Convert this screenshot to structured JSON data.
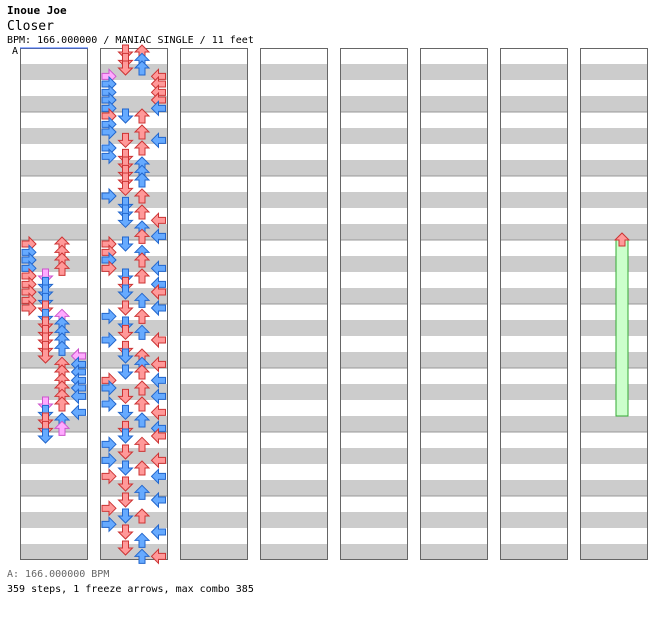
{
  "header": {
    "artist": "Inoue Joe",
    "title": "Closer",
    "info": "BPM: 166.000000 / MANIAC SINGLE / 11 feet",
    "bpm_marker": "A"
  },
  "footer": {
    "bpm_legend": "A: 166.000000 BPM",
    "stats": "359 steps, 1 freeze arrows, max combo 385"
  },
  "colors": {
    "stripe": "#cccccc",
    "background": "#ffffff",
    "border": "#666666",
    "red_arrow": "#ff9999",
    "blue_arrow": "#66aaff",
    "pink_arrow": "#ffaaff",
    "freeze_body": "#ccffcc",
    "bpm_line": "#3366ff"
  },
  "chart_data": {
    "type": "step-chart",
    "lanes": [
      "left",
      "down",
      "up",
      "right"
    ],
    "measures_per_column": 8,
    "columns": 8,
    "arrow_colors": {
      "4th": "red",
      "8th": "blue",
      "16th": "pink"
    },
    "notes": [
      {
        "m": 3,
        "b": 0.0,
        "l": 0,
        "c": "r"
      },
      {
        "m": 3,
        "b": 0.0,
        "l": 2,
        "c": "r"
      },
      {
        "m": 3,
        "b": 0.13,
        "l": 0,
        "c": "b"
      },
      {
        "m": 3,
        "b": 0.13,
        "l": 2,
        "c": "r"
      },
      {
        "m": 3,
        "b": 0.25,
        "l": 0,
        "c": "b"
      },
      {
        "m": 3,
        "b": 0.25,
        "l": 2,
        "c": "r"
      },
      {
        "m": 3,
        "b": 0.38,
        "l": 0,
        "c": "b"
      },
      {
        "m": 3,
        "b": 0.38,
        "l": 2,
        "c": "r"
      },
      {
        "m": 3,
        "b": 0.5,
        "l": 0,
        "c": "r"
      },
      {
        "m": 3,
        "b": 0.5,
        "l": 1,
        "c": "p"
      },
      {
        "m": 3,
        "b": 0.63,
        "l": 0,
        "c": "r"
      },
      {
        "m": 3,
        "b": 0.63,
        "l": 1,
        "c": "b"
      },
      {
        "m": 3,
        "b": 0.75,
        "l": 0,
        "c": "r"
      },
      {
        "m": 3,
        "b": 0.75,
        "l": 1,
        "c": "b"
      },
      {
        "m": 3,
        "b": 0.88,
        "l": 0,
        "c": "r"
      },
      {
        "m": 3,
        "b": 0.88,
        "l": 1,
        "c": "b"
      },
      {
        "m": 4,
        "b": 0.0,
        "l": 0,
        "c": "r"
      },
      {
        "m": 4,
        "b": 0.0,
        "l": 1,
        "c": "r"
      },
      {
        "m": 4,
        "b": 0.13,
        "l": 1,
        "c": "b"
      },
      {
        "m": 4,
        "b": 0.13,
        "l": 2,
        "c": "p"
      },
      {
        "m": 4,
        "b": 0.25,
        "l": 1,
        "c": "r"
      },
      {
        "m": 4,
        "b": 0.25,
        "l": 2,
        "c": "b"
      },
      {
        "m": 4,
        "b": 0.38,
        "l": 1,
        "c": "r"
      },
      {
        "m": 4,
        "b": 0.38,
        "l": 2,
        "c": "b"
      },
      {
        "m": 4,
        "b": 0.5,
        "l": 1,
        "c": "r"
      },
      {
        "m": 4,
        "b": 0.5,
        "l": 2,
        "c": "b"
      },
      {
        "m": 4,
        "b": 0.63,
        "l": 1,
        "c": "r"
      },
      {
        "m": 4,
        "b": 0.63,
        "l": 2,
        "c": "b"
      },
      {
        "m": 4,
        "b": 0.75,
        "l": 1,
        "c": "r"
      },
      {
        "m": 4,
        "b": 0.75,
        "l": 3,
        "c": "p"
      },
      {
        "m": 4,
        "b": 0.88,
        "l": 2,
        "c": "r"
      },
      {
        "m": 4,
        "b": 0.88,
        "l": 3,
        "c": "b"
      },
      {
        "m": 5,
        "b": 0.0,
        "l": 2,
        "c": "r"
      },
      {
        "m": 5,
        "b": 0.0,
        "l": 3,
        "c": "b"
      },
      {
        "m": 5,
        "b": 0.13,
        "l": 2,
        "c": "r"
      },
      {
        "m": 5,
        "b": 0.13,
        "l": 3,
        "c": "b"
      },
      {
        "m": 5,
        "b": 0.25,
        "l": 2,
        "c": "r"
      },
      {
        "m": 5,
        "b": 0.25,
        "l": 3,
        "c": "b"
      },
      {
        "m": 5,
        "b": 0.38,
        "l": 2,
        "c": "r"
      },
      {
        "m": 5,
        "b": 0.38,
        "l": 3,
        "c": "b"
      },
      {
        "m": 5,
        "b": 0.5,
        "l": 1,
        "c": "p"
      },
      {
        "m": 5,
        "b": 0.5,
        "l": 2,
        "c": "r"
      },
      {
        "m": 5,
        "b": 0.63,
        "l": 1,
        "c": "b"
      },
      {
        "m": 5,
        "b": 0.63,
        "l": 3,
        "c": "b"
      },
      {
        "m": 5,
        "b": 0.75,
        "l": 1,
        "c": "r"
      },
      {
        "m": 5,
        "b": 0.75,
        "l": 2,
        "c": "b"
      },
      {
        "m": 5,
        "b": 0.88,
        "l": 1,
        "c": "r"
      },
      {
        "m": 5,
        "b": 0.88,
        "l": 2,
        "c": "p"
      },
      {
        "m": 6,
        "b": 0.0,
        "l": 1,
        "c": "b"
      },
      {
        "m": 8,
        "b": 0.0,
        "l": 1,
        "c": "r"
      },
      {
        "m": 8,
        "b": 0.0,
        "l": 2,
        "c": "r"
      },
      {
        "m": 8,
        "b": 0.13,
        "l": 1,
        "c": "r"
      },
      {
        "m": 8,
        "b": 0.13,
        "l": 2,
        "c": "b"
      },
      {
        "m": 8,
        "b": 0.25,
        "l": 1,
        "c": "r"
      },
      {
        "m": 8,
        "b": 0.25,
        "l": 2,
        "c": "b"
      },
      {
        "m": 8,
        "b": 0.38,
        "l": 0,
        "c": "p"
      },
      {
        "m": 8,
        "b": 0.38,
        "l": 3,
        "c": "r"
      },
      {
        "m": 8,
        "b": 0.5,
        "l": 0,
        "c": "b"
      },
      {
        "m": 8,
        "b": 0.5,
        "l": 3,
        "c": "r"
      },
      {
        "m": 8,
        "b": 0.63,
        "l": 0,
        "c": "b"
      },
      {
        "m": 8,
        "b": 0.63,
        "l": 3,
        "c": "r"
      },
      {
        "m": 8,
        "b": 0.75,
        "l": 0,
        "c": "b"
      },
      {
        "m": 8,
        "b": 0.75,
        "l": 3,
        "c": "r"
      },
      {
        "m": 8,
        "b": 0.88,
        "l": 0,
        "c": "b"
      },
      {
        "m": 8,
        "b": 0.88,
        "l": 3,
        "c": "b"
      },
      {
        "m": 9,
        "b": 0.0,
        "l": 0,
        "c": "r"
      },
      {
        "m": 9,
        "b": 0.0,
        "l": 1,
        "c": "b"
      },
      {
        "m": 9,
        "b": 0.0,
        "l": 2,
        "c": "r"
      },
      {
        "m": 9,
        "b": 0.13,
        "l": 0,
        "c": "b"
      },
      {
        "m": 9,
        "b": 0.25,
        "l": 0,
        "c": "b"
      },
      {
        "m": 9,
        "b": 0.25,
        "l": 2,
        "c": "r"
      },
      {
        "m": 9,
        "b": 0.38,
        "l": 1,
        "c": "r"
      },
      {
        "m": 9,
        "b": 0.38,
        "l": 3,
        "c": "b"
      },
      {
        "m": 9,
        "b": 0.5,
        "l": 0,
        "c": "b"
      },
      {
        "m": 9,
        "b": 0.5,
        "l": 2,
        "c": "r"
      },
      {
        "m": 9,
        "b": 0.63,
        "l": 0,
        "c": "b"
      },
      {
        "m": 9,
        "b": 0.63,
        "l": 1,
        "c": "r"
      },
      {
        "m": 9,
        "b": 0.75,
        "l": 1,
        "c": "r"
      },
      {
        "m": 9,
        "b": 0.75,
        "l": 2,
        "c": "b"
      },
      {
        "m": 9,
        "b": 0.88,
        "l": 1,
        "c": "r"
      },
      {
        "m": 9,
        "b": 0.88,
        "l": 2,
        "c": "b"
      },
      {
        "m": 10,
        "b": 0.0,
        "l": 1,
        "c": "r"
      },
      {
        "m": 10,
        "b": 0.0,
        "l": 2,
        "c": "b"
      },
      {
        "m": 10,
        "b": 0.13,
        "l": 1,
        "c": "r"
      },
      {
        "m": 10,
        "b": 0.25,
        "l": 0,
        "c": "b"
      },
      {
        "m": 10,
        "b": 0.25,
        "l": 2,
        "c": "r"
      },
      {
        "m": 10,
        "b": 0.38,
        "l": 1,
        "c": "b"
      },
      {
        "m": 10,
        "b": 0.5,
        "l": 1,
        "c": "b"
      },
      {
        "m": 10,
        "b": 0.5,
        "l": 2,
        "c": "r"
      },
      {
        "m": 10,
        "b": 0.63,
        "l": 1,
        "c": "b"
      },
      {
        "m": 10,
        "b": 0.63,
        "l": 3,
        "c": "r"
      },
      {
        "m": 10,
        "b": 0.75,
        "l": 2,
        "c": "b"
      },
      {
        "m": 10,
        "b": 0.88,
        "l": 2,
        "c": "r"
      },
      {
        "m": 10,
        "b": 0.88,
        "l": 3,
        "c": "b"
      },
      {
        "m": 11,
        "b": 0.0,
        "l": 0,
        "c": "r"
      },
      {
        "m": 11,
        "b": 0.0,
        "l": 1,
        "c": "b"
      },
      {
        "m": 11,
        "b": 0.13,
        "l": 0,
        "c": "r"
      },
      {
        "m": 11,
        "b": 0.13,
        "l": 2,
        "c": "b"
      },
      {
        "m": 11,
        "b": 0.25,
        "l": 0,
        "c": "b"
      },
      {
        "m": 11,
        "b": 0.25,
        "l": 2,
        "c": "r"
      },
      {
        "m": 11,
        "b": 0.38,
        "l": 0,
        "c": "r"
      },
      {
        "m": 11,
        "b": 0.38,
        "l": 3,
        "c": "b"
      },
      {
        "m": 11,
        "b": 0.5,
        "l": 1,
        "c": "b"
      },
      {
        "m": 11,
        "b": 0.5,
        "l": 2,
        "c": "r"
      },
      {
        "m": 11,
        "b": 0.63,
        "l": 1,
        "c": "r"
      },
      {
        "m": 11,
        "b": 0.63,
        "l": 3,
        "c": "b"
      },
      {
        "m": 11,
        "b": 0.75,
        "l": 1,
        "c": "b"
      },
      {
        "m": 11,
        "b": 0.75,
        "l": 3,
        "c": "r"
      },
      {
        "m": 11,
        "b": 0.88,
        "l": 2,
        "c": "b"
      },
      {
        "m": 12,
        "b": 0.0,
        "l": 1,
        "c": "r"
      },
      {
        "m": 12,
        "b": 0.0,
        "l": 3,
        "c": "b"
      },
      {
        "m": 12,
        "b": 0.13,
        "l": 0,
        "c": "b"
      },
      {
        "m": 12,
        "b": 0.13,
        "l": 2,
        "c": "r"
      },
      {
        "m": 12,
        "b": 0.25,
        "l": 1,
        "c": "b"
      },
      {
        "m": 12,
        "b": 0.38,
        "l": 1,
        "c": "r"
      },
      {
        "m": 12,
        "b": 0.38,
        "l": 2,
        "c": "b"
      },
      {
        "m": 12,
        "b": 0.5,
        "l": 0,
        "c": "b"
      },
      {
        "m": 12,
        "b": 0.5,
        "l": 3,
        "c": "r"
      },
      {
        "m": 12,
        "b": 0.63,
        "l": 1,
        "c": "r"
      },
      {
        "m": 12,
        "b": 0.75,
        "l": 1,
        "c": "b"
      },
      {
        "m": 12,
        "b": 0.75,
        "l": 2,
        "c": "r"
      },
      {
        "m": 12,
        "b": 0.88,
        "l": 2,
        "c": "b"
      },
      {
        "m": 12,
        "b": 0.88,
        "l": 3,
        "c": "r"
      },
      {
        "m": 13,
        "b": 0.0,
        "l": 1,
        "c": "b"
      },
      {
        "m": 13,
        "b": 0.0,
        "l": 2,
        "c": "r"
      },
      {
        "m": 13,
        "b": 0.13,
        "l": 0,
        "c": "r"
      },
      {
        "m": 13,
        "b": 0.13,
        "l": 3,
        "c": "b"
      },
      {
        "m": 13,
        "b": 0.25,
        "l": 0,
        "c": "b"
      },
      {
        "m": 13,
        "b": 0.25,
        "l": 2,
        "c": "r"
      },
      {
        "m": 13,
        "b": 0.38,
        "l": 1,
        "c": "r"
      },
      {
        "m": 13,
        "b": 0.38,
        "l": 3,
        "c": "b"
      },
      {
        "m": 13,
        "b": 0.5,
        "l": 0,
        "c": "b"
      },
      {
        "m": 13,
        "b": 0.5,
        "l": 2,
        "c": "r"
      },
      {
        "m": 13,
        "b": 0.63,
        "l": 1,
        "c": "b"
      },
      {
        "m": 13,
        "b": 0.63,
        "l": 3,
        "c": "r"
      },
      {
        "m": 13,
        "b": 0.75,
        "l": 2,
        "c": "b"
      },
      {
        "m": 13,
        "b": 0.88,
        "l": 1,
        "c": "r"
      },
      {
        "m": 13,
        "b": 0.88,
        "l": 3,
        "c": "b"
      },
      {
        "m": 14,
        "b": 0.0,
        "l": 1,
        "c": "b"
      },
      {
        "m": 14,
        "b": 0.0,
        "l": 3,
        "c": "r"
      },
      {
        "m": 14,
        "b": 0.13,
        "l": 0,
        "c": "b"
      },
      {
        "m": 14,
        "b": 0.13,
        "l": 2,
        "c": "r"
      },
      {
        "m": 14,
        "b": 0.25,
        "l": 1,
        "c": "r"
      },
      {
        "m": 14,
        "b": 0.38,
        "l": 0,
        "c": "b"
      },
      {
        "m": 14,
        "b": 0.38,
        "l": 3,
        "c": "r"
      },
      {
        "m": 14,
        "b": 0.5,
        "l": 1,
        "c": "b"
      },
      {
        "m": 14,
        "b": 0.5,
        "l": 2,
        "c": "r"
      },
      {
        "m": 14,
        "b": 0.63,
        "l": 0,
        "c": "r"
      },
      {
        "m": 14,
        "b": 0.63,
        "l": 3,
        "c": "b"
      },
      {
        "m": 14,
        "b": 0.75,
        "l": 1,
        "c": "r"
      },
      {
        "m": 14,
        "b": 0.88,
        "l": 2,
        "c": "b"
      },
      {
        "m": 15,
        "b": 0.0,
        "l": 1,
        "c": "r"
      },
      {
        "m": 15,
        "b": 0.0,
        "l": 3,
        "c": "b"
      },
      {
        "m": 15,
        "b": 0.13,
        "l": 0,
        "c": "r"
      },
      {
        "m": 15,
        "b": 0.25,
        "l": 1,
        "c": "b"
      },
      {
        "m": 15,
        "b": 0.25,
        "l": 2,
        "c": "r"
      },
      {
        "m": 15,
        "b": 0.38,
        "l": 0,
        "c": "b"
      },
      {
        "m": 15,
        "b": 0.5,
        "l": 1,
        "c": "r"
      },
      {
        "m": 15,
        "b": 0.5,
        "l": 3,
        "c": "b"
      },
      {
        "m": 15,
        "b": 0.63,
        "l": 2,
        "c": "b"
      },
      {
        "m": 15,
        "b": 0.75,
        "l": 1,
        "c": "r"
      },
      {
        "m": 15,
        "b": 0.88,
        "l": 2,
        "c": "b"
      },
      {
        "m": 15,
        "b": 0.88,
        "l": 3,
        "c": "r"
      }
    ],
    "freezes": [
      {
        "m": 59,
        "b": 0.0,
        "l": 2,
        "end_m": 61,
        "end_b": 0.75
      }
    ]
  }
}
